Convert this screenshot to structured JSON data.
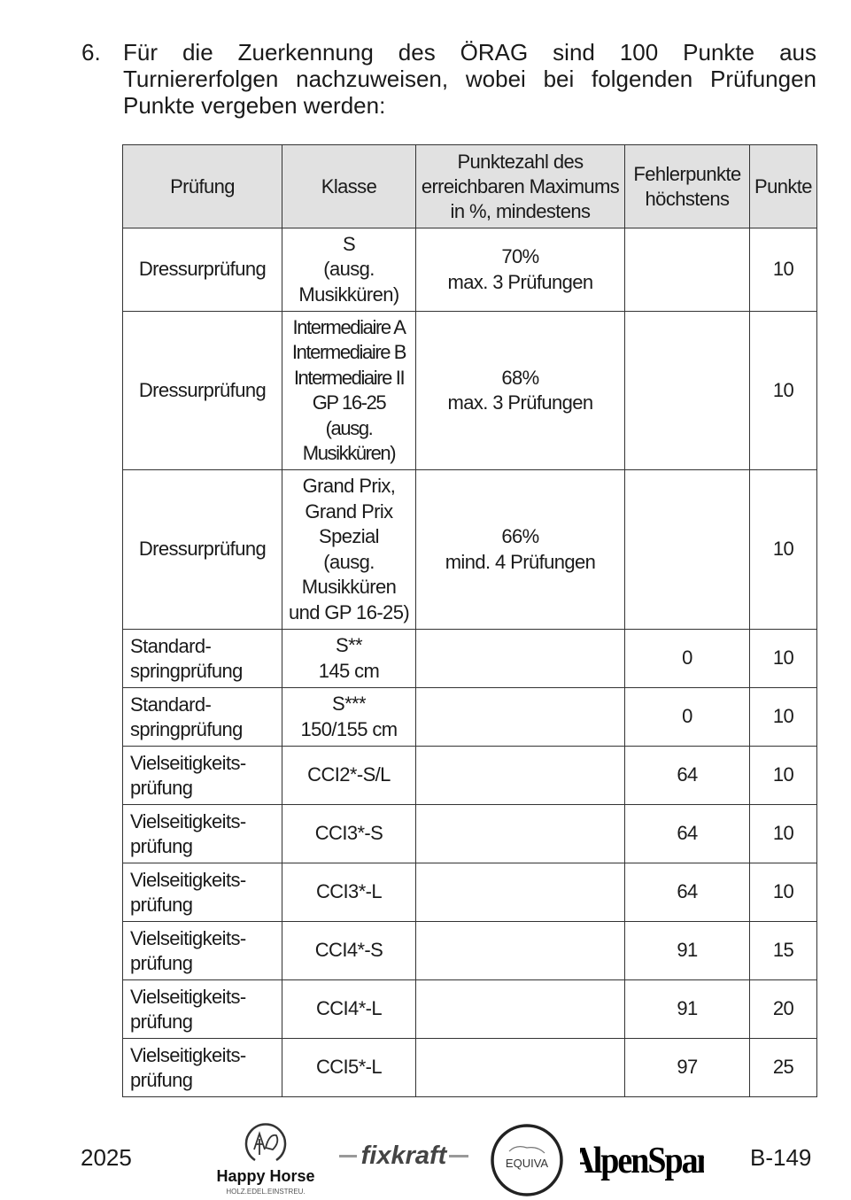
{
  "intro": {
    "number": "6.",
    "text": "Für die Zuerkennung des ÖRAG sind 100 Punkte aus Turniererfolgen nachzuweisen, wobei bei folgenden Prüfungen Punkte vergeben werden:"
  },
  "table": {
    "headers": [
      "Prüfung",
      "Klasse",
      "Punktezahl des\nerreichbaren Maximums\nin %, mindestens",
      "Fehlerpunkte\nhöchstens",
      "Punkte"
    ],
    "rows": [
      {
        "pruefung": "Dressurprüfung",
        "klasse": "S\n(ausg.\nMusikküren)",
        "prozent": "70%\nmax. 3 Prüfungen",
        "fehler": "",
        "punkte": "10"
      },
      {
        "pruefung": "Dressurprüfung",
        "klasse": "Intermediaire A\nIntermediaire B\nIntermediaire II\nGP 16-25\n(ausg.\nMusikküren)",
        "prozent": "68%\nmax. 3 Prüfungen",
        "fehler": "",
        "punkte": "10"
      },
      {
        "pruefung": "Dressurprüfung",
        "klasse": "Grand Prix,\nGrand Prix\nSpezial\n(ausg.\nMusikküren\nund GP 16-25)",
        "prozent": "66%\nmind. 4 Prüfungen",
        "fehler": "",
        "punkte": "10"
      },
      {
        "pruefung": "Standard-\nspringprüfung",
        "klasse": "S**\n145 cm",
        "prozent": "",
        "fehler": "0",
        "punkte": "10"
      },
      {
        "pruefung": "Standard-\nspringprüfung",
        "klasse": "S***\n150/155 cm",
        "prozent": "",
        "fehler": "0",
        "punkte": "10"
      },
      {
        "pruefung": "Vielseitigkeits-\nprüfung",
        "klasse": "CCI2*-S/L",
        "prozent": "",
        "fehler": "64",
        "punkte": "10"
      },
      {
        "pruefung": "Vielseitigkeits-\nprüfung",
        "klasse": "CCI3*-S",
        "prozent": "",
        "fehler": "64",
        "punkte": "10"
      },
      {
        "pruefung": "Vielseitigkeits-\nprüfung",
        "klasse": "CCI3*-L",
        "prozent": "",
        "fehler": "64",
        "punkte": "10"
      },
      {
        "pruefung": "Vielseitigkeits-\nprüfung",
        "klasse": "CCI4*-S",
        "prozent": "",
        "fehler": "91",
        "punkte": "15"
      },
      {
        "pruefung": "Vielseitigkeits-\nprüfung",
        "klasse": "CCI4*-L",
        "prozent": "",
        "fehler": "91",
        "punkte": "20"
      },
      {
        "pruefung": "Vielseitigkeits-\nprüfung",
        "klasse": "CCI5*-L",
        "prozent": "",
        "fehler": "97",
        "punkte": "25"
      }
    ]
  },
  "footer": {
    "year": "2025",
    "page": "B-149",
    "logos": {
      "happy_horse": "Happy Horse",
      "happy_horse_tagline": "HOLZ.EDEL.EINSTREU.",
      "fixkraft": "fixkraft",
      "equiva": "EQUIVA",
      "alpenspan": "AlpenSpan"
    }
  }
}
